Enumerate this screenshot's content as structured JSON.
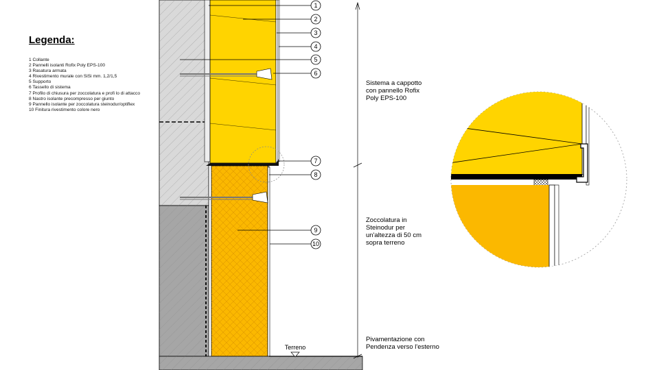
{
  "legend": {
    "title": "Legenda:",
    "items": [
      "1 Collante",
      "2 Pannelli isolanti Rofix Poly EPS-100",
      "3 Rasatura armata",
      "4 Rivestimento murale con SiSi mm. 1,2/1,5",
      "5 Supporto",
      "6 Tassello di sistema",
      "7 Profilo di chiusura per zoccolatura e profi lo di attacco",
      "8 Nastro isolante precompresso per giunto",
      "9 Pannello isolante per zoccolatura steinodur/optiflex",
      "10 Finitura rivestimento colore nero"
    ]
  },
  "callouts": [
    "1",
    "2",
    "3",
    "4",
    "5",
    "6",
    "7",
    "8",
    "9",
    "10"
  ],
  "notes": {
    "sistema": "Sistema a cappotto con pannello Rofix Poly EPS-100",
    "zoccolatura": "Zoccolatura in Steinodur per un'altezza di 50 cm sopra terreno",
    "pavimentazione": "Pivamentazione con Pendenza verso l'esterno",
    "terreno": "Terreno"
  },
  "colors": {
    "eps_yellow": "#ffd400",
    "xps_orange": "#fbb800",
    "wall_gray": "#d9d9d9",
    "wall_dark": "#a6a6a6",
    "line": "#000000"
  }
}
